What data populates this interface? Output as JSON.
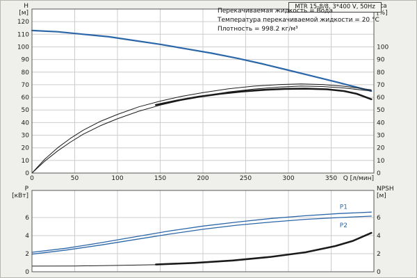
{
  "title_box": {
    "label": "MTR 15-8/8, 3*400 V, 50Hz"
  },
  "annotations": [
    "Перекачиваемая жидкость = Вода",
    "Температура перекачиваемой жидкости = 20 °C",
    "Плотность = 998.2 кг/м³"
  ],
  "colors": {
    "blue": "#2a66a8",
    "black": "#1a1a1a",
    "grid": "#cccccc",
    "axis": "#555555",
    "plot_bg": "#ffffff",
    "text": "#1a1a1a"
  },
  "chart_data": [
    {
      "type": "line",
      "name": "head-efficiency-chart",
      "xlabel": "Q [л/мин]",
      "y_left_label": "H",
      "y_left_unit": "[м]",
      "y_right_label": "eta",
      "y_right_unit": "[%]",
      "xlim": [
        0,
        400
      ],
      "x_ticks": [
        0,
        50,
        100,
        150,
        200,
        250,
        300,
        350
      ],
      "show_x_tick_labels": true,
      "ylim_left": [
        0,
        130
      ],
      "y_left_ticks": [
        0,
        10,
        20,
        30,
        40,
        50,
        60,
        70,
        80,
        90,
        100,
        110,
        120
      ],
      "ylim_right": [
        0,
        130
      ],
      "y_right_ticks": [
        0,
        10,
        20,
        30,
        40,
        50,
        60,
        70,
        80,
        90,
        100
      ],
      "grid": true,
      "series": [
        {
          "name": "H-curve",
          "color": "blue",
          "width": 2.2,
          "axis": "left",
          "points": [
            [
              0,
              113
            ],
            [
              30,
              112
            ],
            [
              60,
              110
            ],
            [
              90,
              108
            ],
            [
              120,
              105
            ],
            [
              150,
              102
            ],
            [
              180,
              98.5
            ],
            [
              210,
              95
            ],
            [
              240,
              91
            ],
            [
              270,
              86.5
            ],
            [
              300,
              81.5
            ],
            [
              330,
              76.5
            ],
            [
              360,
              71.5
            ],
            [
              380,
              68
            ],
            [
              397,
              65
            ]
          ]
        },
        {
          "name": "eta-upper-thin",
          "color": "black",
          "width": 1,
          "axis": "right",
          "points": [
            [
              0,
              0
            ],
            [
              15,
              11
            ],
            [
              30,
              20
            ],
            [
              45,
              27.5
            ],
            [
              60,
              34
            ],
            [
              80,
              41
            ],
            [
              100,
              46.5
            ],
            [
              125,
              52.5
            ],
            [
              150,
              57
            ],
            [
              175,
              60.8
            ],
            [
              200,
              63.8
            ],
            [
              230,
              66.8
            ],
            [
              260,
              68.9
            ],
            [
              290,
              70.2
            ],
            [
              315,
              70.7
            ],
            [
              340,
              70.2
            ],
            [
              365,
              68.8
            ],
            [
              397,
              66
            ]
          ]
        },
        {
          "name": "eta-lower-thin",
          "color": "black",
          "width": 1,
          "axis": "right",
          "points": [
            [
              0,
              0
            ],
            [
              15,
              9.5
            ],
            [
              30,
              17.5
            ],
            [
              45,
              24.5
            ],
            [
              60,
              30.8
            ],
            [
              80,
              37.5
            ],
            [
              100,
              43
            ],
            [
              125,
              49
            ],
            [
              150,
              53.8
            ],
            [
              175,
              57.8
            ],
            [
              200,
              61
            ],
            [
              230,
              64.3
            ],
            [
              260,
              66.6
            ],
            [
              290,
              68.2
            ],
            [
              315,
              68.9
            ],
            [
              340,
              68.6
            ],
            [
              365,
              67.4
            ],
            [
              397,
              65
            ]
          ]
        },
        {
          "name": "eta-duty-thick",
          "color": "black",
          "width": 2.6,
          "axis": "right",
          "points": [
            [
              145,
              54
            ],
            [
              170,
              57.5
            ],
            [
              195,
              60.5
            ],
            [
              220,
              62.8
            ],
            [
              245,
              64.6
            ],
            [
              270,
              65.9
            ],
            [
              295,
              66.7
            ],
            [
              320,
              66.9
            ],
            [
              345,
              66.4
            ],
            [
              365,
              65
            ],
            [
              380,
              62.8
            ],
            [
              397,
              58.5
            ]
          ]
        }
      ]
    },
    {
      "type": "line",
      "name": "power-npsh-chart",
      "y_left_label": "P",
      "y_left_unit": "[кВт]",
      "y_right_label": "NPSH",
      "y_right_unit": "[м]",
      "xlim": [
        0,
        400
      ],
      "x_ticks": [
        0,
        50,
        100,
        150,
        200,
        250,
        300,
        350
      ],
      "show_x_tick_labels": false,
      "ylim_left": [
        0,
        9
      ],
      "y_left_ticks": [
        0,
        2,
        4,
        6
      ],
      "ylim_right": [
        0,
        9
      ],
      "y_right_ticks": [
        0,
        2,
        4,
        6
      ],
      "grid": true,
      "series": [
        {
          "name": "P1-curve",
          "color": "blue",
          "width": 1.3,
          "axis": "left",
          "label": "P1",
          "label_x": 360,
          "label_y": 7.2,
          "points": [
            [
              0,
              2.15
            ],
            [
              40,
              2.6
            ],
            [
              80,
              3.2
            ],
            [
              120,
              3.85
            ],
            [
              160,
              4.5
            ],
            [
              200,
              5.05
            ],
            [
              240,
              5.5
            ],
            [
              280,
              5.9
            ],
            [
              320,
              6.2
            ],
            [
              360,
              6.45
            ],
            [
              397,
              6.6
            ]
          ]
        },
        {
          "name": "P2-curve",
          "color": "blue",
          "width": 1.3,
          "axis": "left",
          "label": "P2",
          "label_x": 360,
          "label_y": 5.15,
          "points": [
            [
              0,
              1.95
            ],
            [
              40,
              2.4
            ],
            [
              80,
              2.95
            ],
            [
              120,
              3.55
            ],
            [
              160,
              4.15
            ],
            [
              200,
              4.7
            ],
            [
              240,
              5.15
            ],
            [
              280,
              5.5
            ],
            [
              320,
              5.8
            ],
            [
              360,
              6.0
            ],
            [
              397,
              6.15
            ]
          ]
        },
        {
          "name": "NPSH-lead-thin",
          "color": "black",
          "width": 1,
          "axis": "right",
          "points": [
            [
              0,
              0.62
            ],
            [
              50,
              0.64
            ],
            [
              100,
              0.7
            ],
            [
              145,
              0.78
            ]
          ]
        },
        {
          "name": "NPSH-duty-thick",
          "color": "black",
          "width": 2.6,
          "axis": "right",
          "points": [
            [
              145,
              0.8
            ],
            [
              190,
              0.98
            ],
            [
              235,
              1.25
            ],
            [
              280,
              1.65
            ],
            [
              320,
              2.15
            ],
            [
              355,
              2.85
            ],
            [
              375,
              3.4
            ],
            [
              397,
              4.3
            ]
          ]
        }
      ]
    }
  ]
}
